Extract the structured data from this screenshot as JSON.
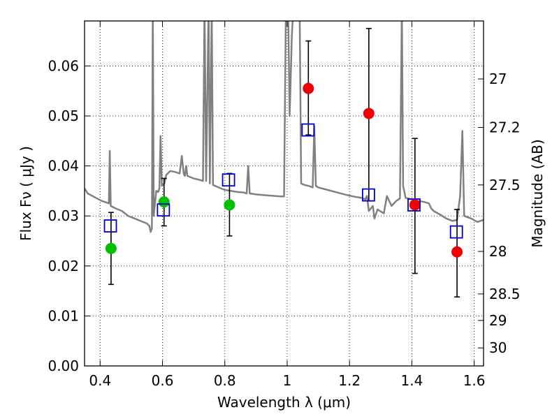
{
  "chart_data": {
    "type": "scatter",
    "xlabel": "Wavelength  λ (μm)",
    "ylabel": "Flux  Fν  ( μJy )",
    "y2label": "Magnitude (AB)",
    "xlim": [
      0.35,
      1.63
    ],
    "ylim": [
      0.0,
      0.069
    ],
    "grid": true,
    "x_ticks": [
      0.4,
      0.6,
      0.8,
      1.0,
      1.2,
      1.4,
      1.6
    ],
    "x_tick_labels": [
      "0.4",
      "0.6",
      "0.8",
      "1",
      "1.2",
      "1.4",
      "1.6"
    ],
    "y_ticks": [
      0.0,
      0.01,
      0.02,
      0.03,
      0.04,
      0.05,
      0.06
    ],
    "y_tick_labels": [
      "0.00",
      "0.01",
      "0.02",
      "0.03",
      "0.04",
      "0.05",
      "0.06"
    ],
    "y2_ticks": [
      {
        "label": "27",
        "flux": 0.0574
      },
      {
        "label": "27.2",
        "flux": 0.0477
      },
      {
        "label": "27.5",
        "flux": 0.0362
      },
      {
        "label": "28",
        "flux": 0.0229
      },
      {
        "label": "28.5",
        "flux": 0.0144
      },
      {
        "label": "29",
        "flux": 0.0091
      },
      {
        "label": "30",
        "flux": 0.0036
      }
    ],
    "colors": {
      "model_sed": "#808080",
      "green_points": "#00c000",
      "red_points": "#ee0000",
      "model_squares": "#0000cc",
      "error_bars": "#000000",
      "grid": "#000000"
    },
    "series": [
      {
        "name": "model SED",
        "kind": "line",
        "points": [
          [
            0.35,
            0.0355
          ],
          [
            0.36,
            0.0345
          ],
          [
            0.375,
            0.034
          ],
          [
            0.39,
            0.0335
          ],
          [
            0.405,
            0.033
          ],
          [
            0.42,
            0.0327
          ],
          [
            0.428,
            0.0325
          ],
          [
            0.431,
            0.043
          ],
          [
            0.434,
            0.032
          ],
          [
            0.45,
            0.0315
          ],
          [
            0.47,
            0.031
          ],
          [
            0.49,
            0.03
          ],
          [
            0.51,
            0.0295
          ],
          [
            0.53,
            0.029
          ],
          [
            0.55,
            0.0285
          ],
          [
            0.558,
            0.028
          ],
          [
            0.562,
            0.0268
          ],
          [
            0.566,
            0.0275
          ],
          [
            0.569,
            0.072
          ],
          [
            0.572,
            0.03
          ],
          [
            0.58,
            0.035
          ],
          [
            0.586,
            0.0348
          ],
          [
            0.59,
            0.0355
          ],
          [
            0.594,
            0.046
          ],
          [
            0.598,
            0.036
          ],
          [
            0.606,
            0.0365
          ],
          [
            0.612,
            0.0382
          ],
          [
            0.625,
            0.039
          ],
          [
            0.64,
            0.0388
          ],
          [
            0.655,
            0.0385
          ],
          [
            0.662,
            0.042
          ],
          [
            0.668,
            0.0385
          ],
          [
            0.672,
            0.038
          ],
          [
            0.676,
            0.04
          ],
          [
            0.68,
            0.038
          ],
          [
            0.7,
            0.0375
          ],
          [
            0.72,
            0.0372
          ],
          [
            0.73,
            0.037
          ],
          [
            0.735,
            0.072
          ],
          [
            0.74,
            0.037
          ],
          [
            0.748,
            0.072
          ],
          [
            0.752,
            0.0365
          ],
          [
            0.758,
            0.072
          ],
          [
            0.762,
            0.0362
          ],
          [
            0.78,
            0.0357
          ],
          [
            0.8,
            0.0352
          ],
          [
            0.82,
            0.035
          ],
          [
            0.84,
            0.0348
          ],
          [
            0.86,
            0.0347
          ],
          [
            0.87,
            0.0345
          ],
          [
            0.875,
            0.04
          ],
          [
            0.88,
            0.0345
          ],
          [
            0.9,
            0.0343
          ],
          [
            0.92,
            0.0342
          ],
          [
            0.94,
            0.0341
          ],
          [
            0.96,
            0.034
          ],
          [
            0.98,
            0.0339
          ],
          [
            0.99,
            0.0339
          ],
          [
            0.996,
            0.072
          ],
          [
            1.003,
            0.072
          ],
          [
            1.008,
            0.05
          ],
          [
            1.015,
            0.066
          ],
          [
            1.02,
            0.072
          ],
          [
            1.04,
            0.072
          ],
          [
            1.045,
            0.0365
          ],
          [
            1.055,
            0.0362
          ],
          [
            1.07,
            0.036
          ],
          [
            1.082,
            0.0357
          ],
          [
            1.087,
            0.048
          ],
          [
            1.092,
            0.036
          ],
          [
            1.1,
            0.0357
          ],
          [
            1.13,
            0.0352
          ],
          [
            1.16,
            0.0347
          ],
          [
            1.19,
            0.0342
          ],
          [
            1.22,
            0.0338
          ],
          [
            1.24,
            0.0336
          ],
          [
            1.25,
            0.0333
          ],
          [
            1.256,
            0.034
          ],
          [
            1.262,
            0.031
          ],
          [
            1.275,
            0.032
          ],
          [
            1.28,
            0.0295
          ],
          [
            1.29,
            0.0313
          ],
          [
            1.31,
            0.0305
          ],
          [
            1.32,
            0.034
          ],
          [
            1.335,
            0.032
          ],
          [
            1.35,
            0.033
          ],
          [
            1.362,
            0.0335
          ],
          [
            1.368,
            0.072
          ],
          [
            1.372,
            0.036
          ],
          [
            1.38,
            0.0336
          ],
          [
            1.4,
            0.0333
          ],
          [
            1.42,
            0.033
          ],
          [
            1.44,
            0.0328
          ],
          [
            1.455,
            0.0325
          ],
          [
            1.462,
            0.0315
          ],
          [
            1.47,
            0.031
          ],
          [
            1.49,
            0.0303
          ],
          [
            1.51,
            0.0295
          ],
          [
            1.53,
            0.029
          ],
          [
            1.545,
            0.0292
          ],
          [
            1.555,
            0.034
          ],
          [
            1.562,
            0.047
          ],
          [
            1.568,
            0.03
          ],
          [
            1.59,
            0.0295
          ],
          [
            1.61,
            0.0288
          ],
          [
            1.63,
            0.0292
          ]
        ]
      },
      {
        "name": "green photometry",
        "kind": "errorbar",
        "points": [
          {
            "x": 0.435,
            "y": 0.0235,
            "ylo": 0.0163,
            "yhi": 0.0307
          },
          {
            "x": 0.605,
            "y": 0.0328,
            "ylo": 0.028,
            "yhi": 0.0375
          },
          {
            "x": 0.815,
            "y": 0.0322,
            "ylo": 0.026,
            "yhi": 0.0385
          }
        ]
      },
      {
        "name": "red photometry",
        "kind": "errorbar",
        "points": [
          {
            "x": 1.068,
            "y": 0.0555,
            "ylo": 0.0462,
            "yhi": 0.065
          },
          {
            "x": 1.262,
            "y": 0.0505,
            "ylo": 0.033,
            "yhi": 0.0675
          },
          {
            "x": 1.41,
            "y": 0.0322,
            "ylo": 0.0185,
            "yhi": 0.0455
          },
          {
            "x": 1.545,
            "y": 0.0228,
            "ylo": 0.0138,
            "yhi": 0.0313
          }
        ]
      },
      {
        "name": "model photometry",
        "kind": "square",
        "points": [
          {
            "x": 0.433,
            "y": 0.028
          },
          {
            "x": 0.603,
            "y": 0.0312
          },
          {
            "x": 0.812,
            "y": 0.0372
          },
          {
            "x": 1.067,
            "y": 0.0472
          },
          {
            "x": 1.261,
            "y": 0.0342
          },
          {
            "x": 1.407,
            "y": 0.0322
          },
          {
            "x": 1.543,
            "y": 0.0268
          }
        ]
      }
    ]
  }
}
